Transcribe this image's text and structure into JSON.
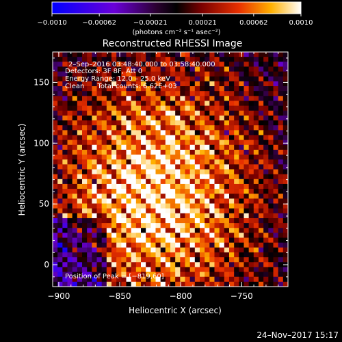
{
  "chart_data": {
    "type": "heatmap",
    "title": "Reconstructed RHESSI Image",
    "xlabel": "Heliocentric X (arcsec)",
    "ylabel": "Heliocentric Y (arcsec)",
    "xlim": [
      -905,
      -712
    ],
    "ylim": [
      -18,
      175
    ],
    "x_ticks": [
      -900,
      -850,
      -800,
      -750
    ],
    "x_tick_labels": [
      "−900",
      "−850",
      "−800",
      "−750"
    ],
    "y_ticks": [
      0,
      50,
      100,
      150
    ],
    "y_tick_labels": [
      "0",
      "50",
      "100",
      "150"
    ],
    "colorbar": {
      "range": [
        -0.001,
        0.001
      ],
      "ticks": [
        -0.001,
        -0.00062,
        -0.00021,
        0.00021,
        0.00062,
        0.001
      ],
      "tick_labels": [
        "−0.0010",
        "−0.00062",
        "−0.00021",
        "0.00021",
        "0.00062",
        "0.0010"
      ],
      "unit_label": "(photons cm⁻² s⁻¹ asec⁻²)"
    },
    "annotations": [
      "2–Sep–2016 03:48:40.000 to 03:58:40.000",
      "Detectors: 3F 8F, Att 0",
      "Energy Range: 12.0 – 25.0 keV",
      "Clean      Total counts: 6.62E+03"
    ],
    "peak_label": "Position of Peak = [−819,60]",
    "peak": [
      -819,
      60
    ]
  },
  "footer": {
    "timestamp": "24–Nov–2017 15:17"
  }
}
